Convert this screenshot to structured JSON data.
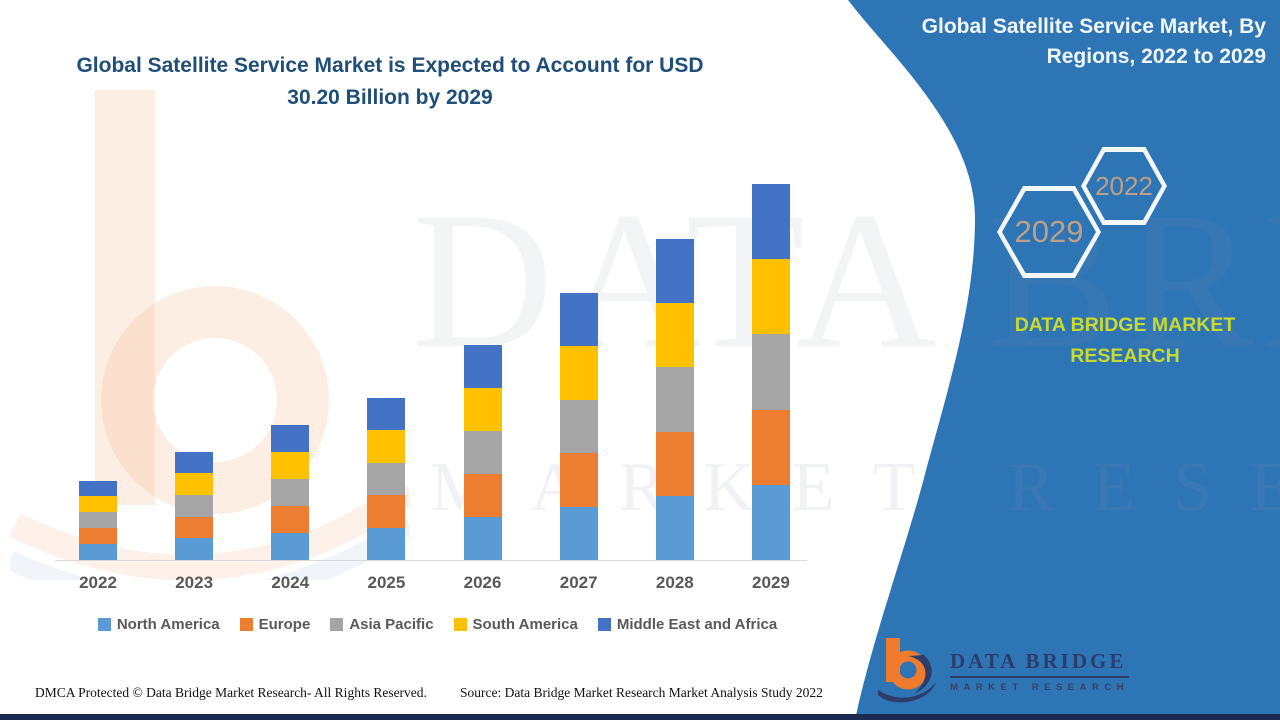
{
  "title": {
    "line1": "Global Satellite Service Market is Expected to Account for USD",
    "line2": "30.20 Billion by 2029"
  },
  "panel": {
    "header_line1": "Global Satellite Service Market, By",
    "header_line2": "Regions, 2022 to 2029",
    "hex_back_label": "2022",
    "hex_front_label": "2029",
    "brand_line1": "DATA BRIDGE MARKET",
    "brand_line2": "RESEARCH",
    "color": "#2E75B6"
  },
  "logo": {
    "title": "DATA BRIDGE",
    "subtitle": "MARKET RESEARCH",
    "orange": "#F07B2D",
    "navy": "#2C3C6B"
  },
  "watermark": {
    "line1": "DATA BRIDGE",
    "line2": "MARKET RESEARCH"
  },
  "footer": {
    "dmca": "DMCA Protected © Data Bridge Market Research- All Rights Reserved.",
    "source": "Source: Data Bridge Market Research Market Analysis Study 2022"
  },
  "colors": {
    "title_navy": "#1F4E79",
    "axis_text": "#595959",
    "axis_line": "#D9D9D9",
    "bottom_strip": "#1C2A52",
    "brand_green": "#C9D92E",
    "hex_year_text": "#BFA086"
  },
  "chart_data": {
    "type": "bar",
    "stacked": true,
    "title": "Global Satellite Service Market is Expected to Account for USD 30.20 Billion by 2029",
    "unit": "USD Billion",
    "xlabel": "",
    "ylabel": "",
    "ylim": [
      0,
      30.2
    ],
    "grid": false,
    "legend_position": "bottom",
    "categories": [
      "2022",
      "2023",
      "2024",
      "2025",
      "2026",
      "2027",
      "2028",
      "2029"
    ],
    "series": [
      {
        "name": "North America",
        "color": "#5B9BD5",
        "values": [
          1.28,
          1.74,
          2.18,
          2.6,
          3.46,
          4.3,
          5.16,
          6.04
        ]
      },
      {
        "name": "Europe",
        "color": "#ED7D31",
        "values": [
          1.28,
          1.74,
          2.18,
          2.6,
          3.46,
          4.3,
          5.16,
          6.04
        ]
      },
      {
        "name": "Asia Pacific",
        "color": "#A5A5A5",
        "values": [
          1.28,
          1.74,
          2.18,
          2.6,
          3.46,
          4.3,
          5.16,
          6.04
        ]
      },
      {
        "name": "South America",
        "color": "#FFC000",
        "values": [
          1.28,
          1.74,
          2.18,
          2.6,
          3.46,
          4.3,
          5.16,
          6.04
        ]
      },
      {
        "name": "Middle East and Africa",
        "color": "#4472C4",
        "values": [
          1.28,
          1.74,
          2.18,
          2.6,
          3.46,
          4.3,
          5.16,
          6.04
        ]
      }
    ],
    "totals": [
      6.4,
      8.7,
      10.9,
      13.0,
      17.3,
      21.5,
      25.8,
      30.2
    ]
  }
}
